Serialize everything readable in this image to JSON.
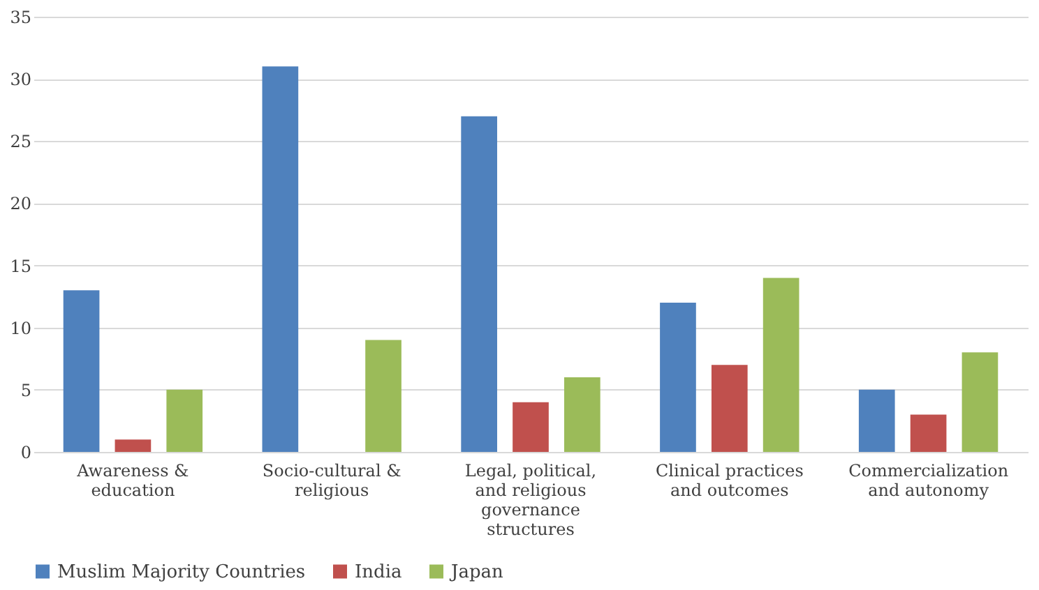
{
  "chart_data": {
    "type": "bar",
    "categories": [
      "Awareness & education",
      "Socio-cultural & religious",
      "Legal, political, and religious governance structures",
      "Clinical practices and outcomes",
      "Commercialization and autonomy"
    ],
    "series": [
      {
        "name": "Muslim Majority Countries",
        "color": "#4f81bd",
        "values": [
          13,
          31,
          27,
          12,
          5
        ]
      },
      {
        "name": "India",
        "color": "#c0504d",
        "values": [
          1,
          null,
          4,
          7,
          3
        ]
      },
      {
        "name": "Japan",
        "color": "#9bbb59",
        "values": [
          5,
          9,
          6,
          14,
          8
        ]
      }
    ],
    "ylim": [
      0,
      35
    ],
    "yticks": [
      0,
      5,
      10,
      15,
      20,
      25,
      30,
      35
    ],
    "grid": "y",
    "legend": "bottom"
  }
}
